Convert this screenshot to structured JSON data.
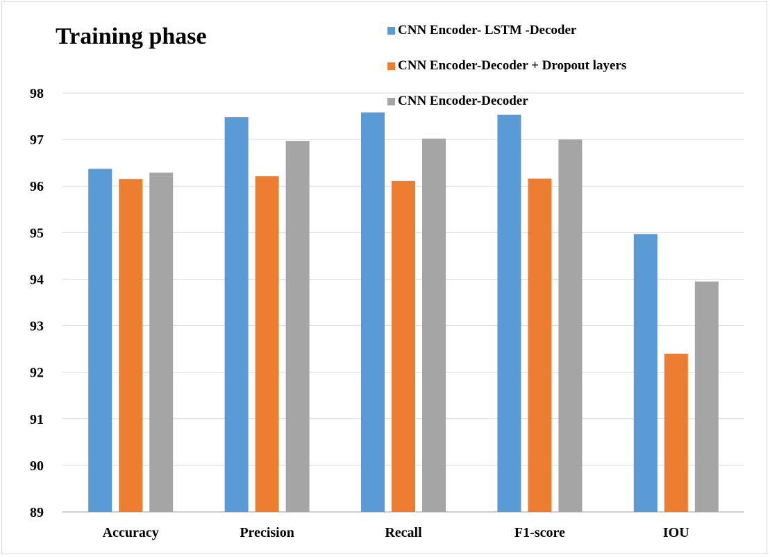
{
  "chart_data": {
    "type": "bar",
    "title": "Training phase",
    "xlabel": "",
    "ylabel": "",
    "ylim": [
      89,
      98
    ],
    "yticks": [
      89,
      90,
      91,
      92,
      93,
      94,
      95,
      96,
      97,
      98
    ],
    "categories": [
      "Accuracy",
      "Precision",
      "Recall",
      "F1-score",
      "IOU"
    ],
    "series": [
      {
        "name": "CNN Encoder- LSTM -Decoder",
        "color": "#5b9bd5",
        "values": [
          96.37,
          97.48,
          97.58,
          97.53,
          94.97
        ]
      },
      {
        "name": "CNN Encoder-Decoder + Dropout layers",
        "color": "#ed7d31",
        "values": [
          96.15,
          96.21,
          96.11,
          96.16,
          92.4
        ]
      },
      {
        "name": "CNN Encoder-Decoder",
        "color": "#a5a5a5",
        "values": [
          96.29,
          96.97,
          97.02,
          97.0,
          93.95
        ]
      }
    ],
    "grid": true,
    "legend": "top-right"
  }
}
